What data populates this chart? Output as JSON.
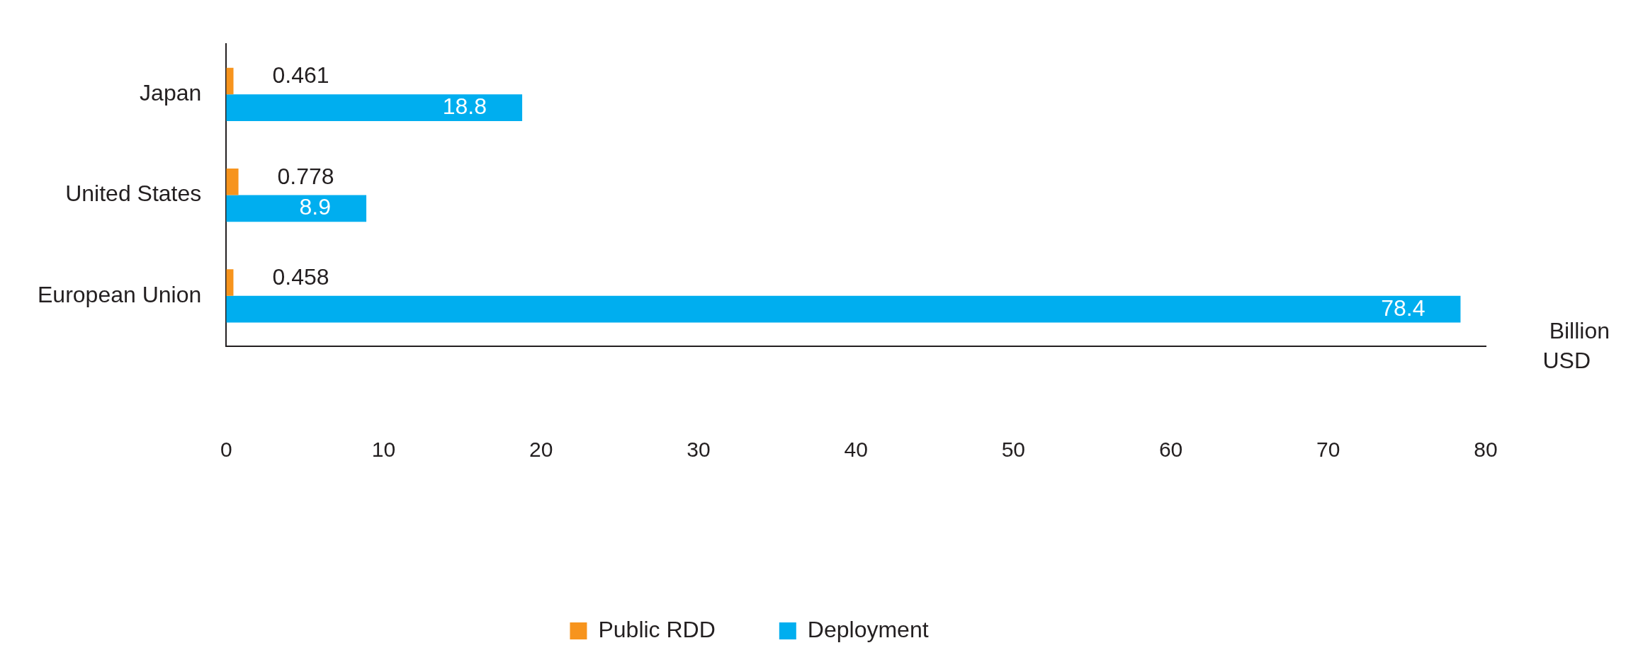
{
  "chart_data": {
    "type": "bar",
    "orientation": "horizontal",
    "xlabel": "Billion USD",
    "categories": [
      "Japan",
      "United States",
      "European Union"
    ],
    "series": [
      {
        "name": "Public RDD",
        "color": "#f7941d",
        "values": [
          0.461,
          0.778,
          0.458
        ]
      },
      {
        "name": "Deployment",
        "color": "#00aeef",
        "values": [
          18.8,
          8.9,
          78.4
        ]
      }
    ],
    "xlim": [
      0,
      80
    ],
    "xticks": [
      0,
      10,
      20,
      30,
      40,
      50,
      60,
      70,
      80
    ],
    "grid": false,
    "legend": "bottom",
    "data_labels": true
  }
}
